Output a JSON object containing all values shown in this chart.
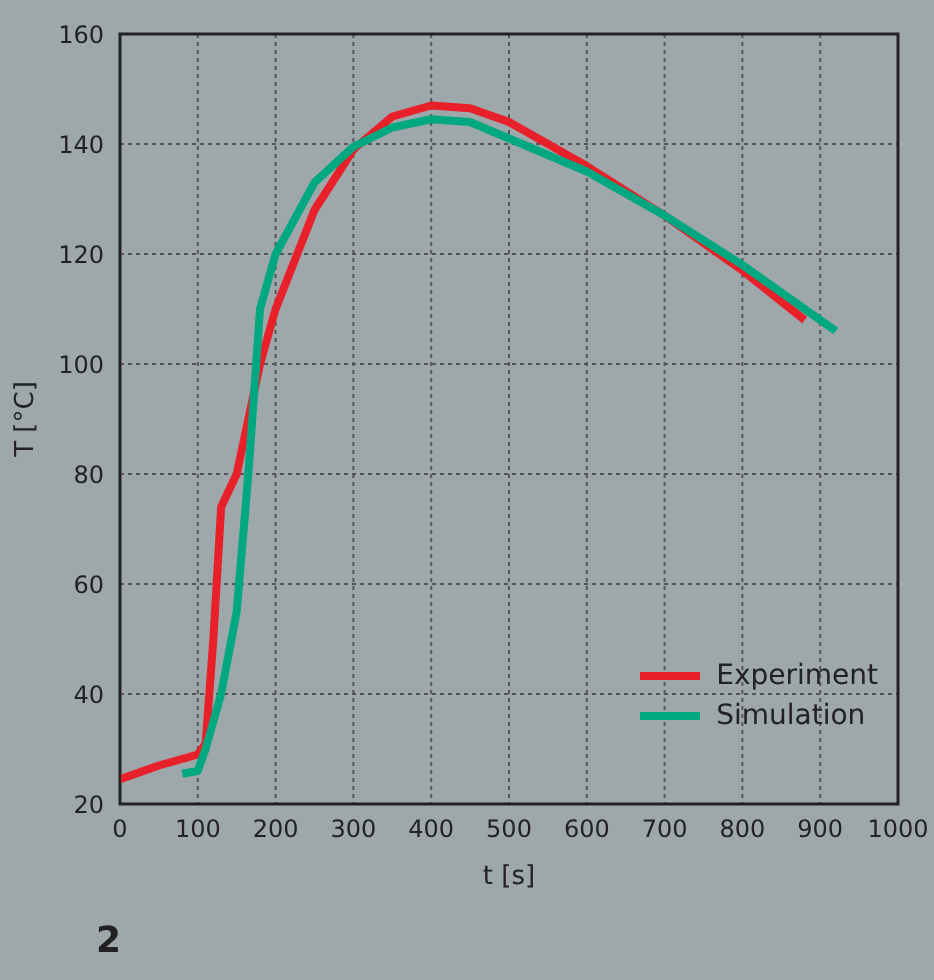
{
  "chart_data": {
    "type": "line",
    "xlabel": "t [s]",
    "ylabel": "T [°C]",
    "xlim": [
      0,
      1000
    ],
    "xticks": [
      0,
      100,
      200,
      300,
      400,
      500,
      600,
      700,
      800,
      900,
      1000
    ],
    "ylim": [
      20,
      160
    ],
    "yticks": [
      20,
      40,
      60,
      80,
      100,
      120,
      140,
      160
    ],
    "grid": true,
    "legend": "bottom right",
    "marker": "none",
    "line_style": "solid",
    "annotations": [
      "2"
    ],
    "series": [
      {
        "name": "Experiment",
        "color": "#e8202a",
        "x": [
          0,
          50,
          100,
          110,
          120,
          130,
          150,
          165,
          180,
          200,
          250,
          300,
          350,
          400,
          450,
          500,
          600,
          700,
          800,
          880
        ],
        "values": [
          24.5,
          27,
          29,
          31,
          50,
          74,
          80,
          90,
          100,
          110,
          128,
          139,
          145,
          147,
          146.5,
          144,
          136,
          127,
          117,
          108
        ]
      },
      {
        "name": "Simulation",
        "color": "#00a882",
        "x": [
          80,
          100,
          110,
          130,
          150,
          165,
          180,
          200,
          250,
          300,
          350,
          400,
          450,
          500,
          600,
          700,
          800,
          920
        ],
        "values": [
          25.5,
          26,
          30,
          40,
          55,
          80,
          110,
          120,
          133,
          139.5,
          143,
          144.5,
          144,
          141,
          135,
          127,
          118,
          106
        ]
      }
    ]
  }
}
